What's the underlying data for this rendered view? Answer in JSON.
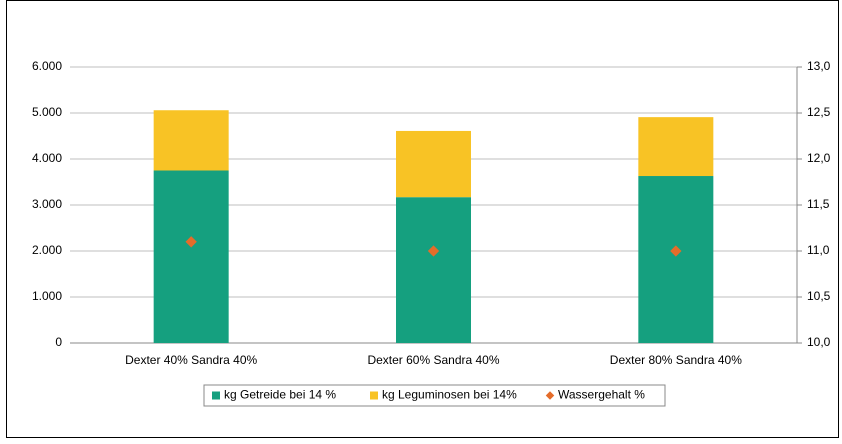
{
  "chart_data": {
    "type": "stacked_bar_scatter",
    "categories": [
      "Dexter 40% Sandra 40%",
      "Dexter 60% Sandra 40%",
      "Dexter 80% Sandra 40%"
    ],
    "series": [
      {
        "name": "kg Getreide bei 14 %",
        "color": "#15a07f",
        "values": [
          3750,
          3170,
          3630
        ]
      },
      {
        "name": "kg Leguminosen bei 14%",
        "color": "#f8c325",
        "values": [
          1310,
          1440,
          1280
        ]
      },
      {
        "name": "Wassergehalt %",
        "color": "#e46c2a",
        "values": [
          11.1,
          11.0,
          11.0
        ],
        "axis": "y2"
      }
    ],
    "ylim": [
      0,
      6000
    ],
    "yticks": [
      0,
      {
        "value": 1000,
        "label": "1.000"
      },
      {
        "value": 2000,
        "label": "2.000"
      },
      {
        "value": 3000,
        "label": "3.000"
      },
      {
        "value": 4000,
        "label": "4.000"
      },
      {
        "value": 5000,
        "label": "5.000"
      },
      {
        "value": 6000,
        "label": "6.000"
      }
    ],
    "y2lim": [
      10,
      13
    ],
    "y2ticks": [
      {
        "value": 10,
        "label": "10,0"
      },
      {
        "value": 10.5,
        "label": "10,5"
      },
      {
        "value": 11,
        "label": "11,0"
      },
      {
        "value": 11.5,
        "label": "11,5"
      },
      {
        "value": 12,
        "label": "12,0"
      },
      {
        "value": 12.5,
        "label": "12,5"
      },
      {
        "value": 13,
        "label": "13,0"
      }
    ],
    "grid": true,
    "legend": "bottom"
  }
}
